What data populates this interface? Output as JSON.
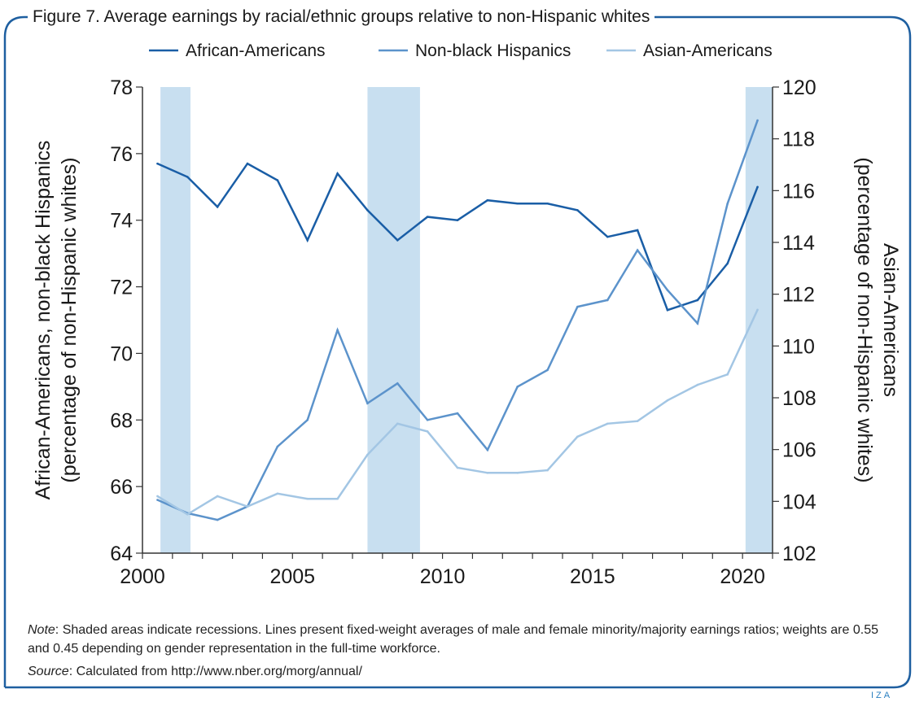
{
  "figure": {
    "title": "Figure 7. Average earnings by racial/ethnic groups relative to non-Hispanic whites",
    "note_lead": "Note",
    "note_text": ": Shaded areas indicate recessions. Lines present fixed-weight averages of male and female minority/majority earnings ratios; weights are 0.55 and 0.45 depending on gender representation in the full-time workforce.",
    "source_lead": "Source",
    "source_text": ": Calculated from http://www.nber.org/morg/annual/",
    "brand": "IZA",
    "frame_color": "#1e5fa0"
  },
  "chart_data": {
    "type": "line",
    "title": "Figure 7. Average earnings by racial/ethnic groups relative to non-Hispanic whites",
    "xlabel": "",
    "ylabel_left": [
      "African-Americans, non-black Hispanics",
      "(percentage of non-Hispanic whites)"
    ],
    "ylabel_right": [
      "Asian-Americans",
      "(percentage of non-Hispanic whites)"
    ],
    "xlim": [
      2000,
      2021
    ],
    "ylim_left": [
      64,
      78
    ],
    "ylim_right": [
      102,
      120
    ],
    "xticks": [
      2000,
      2005,
      2010,
      2015,
      2020
    ],
    "yticks_left": [
      64,
      66,
      68,
      70,
      72,
      74,
      76,
      78
    ],
    "yticks_right": [
      102,
      104,
      106,
      108,
      110,
      112,
      114,
      116,
      118,
      120
    ],
    "grid": false,
    "legend_position": "top",
    "recessions": [
      [
        2000.6,
        2001.6
      ],
      [
        2007.5,
        2009.25
      ],
      [
        2020.1,
        2021.0
      ]
    ],
    "recession_color": "#c8dff0",
    "series": [
      {
        "name": "African-Americans",
        "axis": "left",
        "color": "#1a5ea6",
        "x": [
          2000.5,
          2001.5,
          2002.5,
          2003.5,
          2004.5,
          2005.5,
          2006.5,
          2007.5,
          2008.5,
          2009.5,
          2010.5,
          2011.5,
          2012.5,
          2013.5,
          2014.5,
          2015.5,
          2016.5,
          2017.5,
          2018.5,
          2019.5,
          2020.5
        ],
        "y": [
          75.7,
          75.3,
          74.4,
          75.7,
          75.2,
          73.4,
          75.4,
          74.3,
          73.4,
          74.1,
          74.0,
          74.6,
          74.5,
          74.5,
          74.3,
          73.5,
          73.7,
          71.3,
          71.6,
          72.7,
          75.0
        ]
      },
      {
        "name": "Non-black Hispanics",
        "axis": "left",
        "color": "#5c93cb",
        "x": [
          2000.5,
          2001.5,
          2002.5,
          2003.5,
          2004.5,
          2005.5,
          2006.5,
          2007.5,
          2008.5,
          2009.5,
          2010.5,
          2011.5,
          2012.5,
          2013.5,
          2014.5,
          2015.5,
          2016.5,
          2017.5,
          2018.5,
          2019.5,
          2020.5
        ],
        "y": [
          65.6,
          65.2,
          65.0,
          65.4,
          67.2,
          68.0,
          70.7,
          68.5,
          69.1,
          68.0,
          68.2,
          67.1,
          69.0,
          69.5,
          71.4,
          71.6,
          73.1,
          71.9,
          70.9,
          74.5,
          77.0
        ]
      },
      {
        "name": "Asian-Americans",
        "axis": "right",
        "color": "#a3c6e4",
        "x": [
          2000.5,
          2001.5,
          2002.5,
          2003.5,
          2004.5,
          2005.5,
          2006.5,
          2007.5,
          2008.5,
          2009.5,
          2010.5,
          2011.5,
          2012.5,
          2013.5,
          2014.5,
          2015.5,
          2016.5,
          2017.5,
          2018.5,
          2019.5,
          2020.5
        ],
        "y": [
          104.2,
          103.5,
          104.2,
          103.8,
          104.3,
          104.1,
          104.1,
          105.8,
          107.0,
          106.7,
          105.3,
          105.1,
          105.1,
          105.2,
          106.5,
          107.0,
          107.1,
          107.9,
          108.5,
          108.9,
          111.4
        ]
      }
    ]
  }
}
